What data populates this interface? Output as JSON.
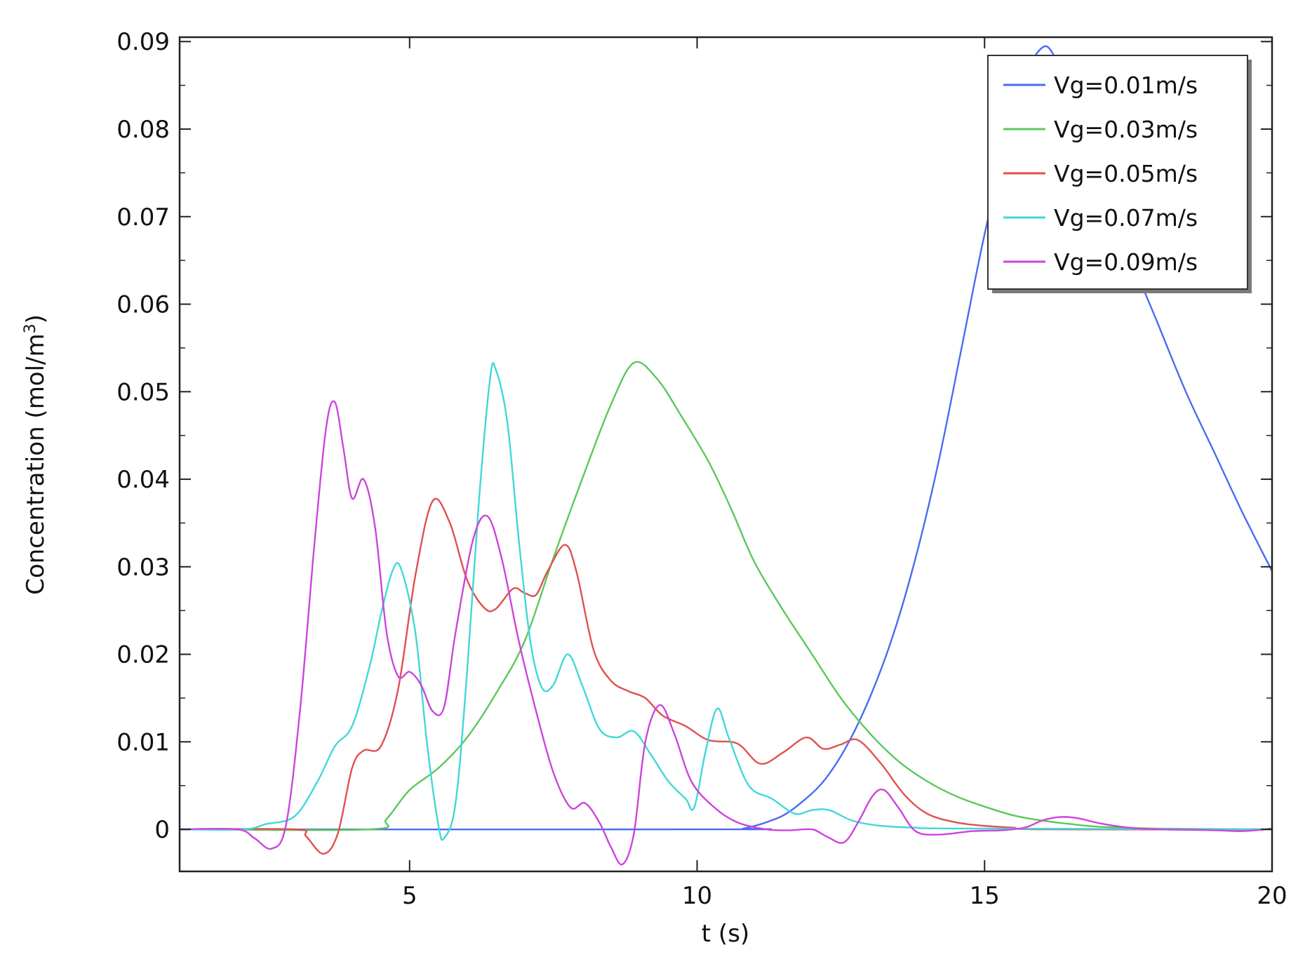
{
  "chart_data": {
    "type": "line",
    "xlabel": "t (s)",
    "ylabel": "Concentration (mol/m",
    "ylabel_superscript": "3",
    "ylabel_suffix": ")",
    "xlim": [
      1,
      20
    ],
    "ylim": [
      -0.0048,
      0.0905
    ],
    "x_ticks": [
      5,
      10,
      15,
      20
    ],
    "x_tick_labels": [
      "5",
      "10",
      "15",
      "20"
    ],
    "y_ticks": [
      0,
      0.01,
      0.02,
      0.03,
      0.04,
      0.05,
      0.06,
      0.07,
      0.08,
      0.09
    ],
    "y_tick_labels": [
      "0",
      "0.01",
      "0.02",
      "0.03",
      "0.04",
      "0.05",
      "0.06",
      "0.07",
      "0.08",
      "0.09"
    ],
    "grid": false,
    "legend_position": "top-right",
    "series": [
      {
        "name": "Vg=0.01m/s",
        "color": "#4a6cf0",
        "points": [
          [
            1,
            0
          ],
          [
            10.5,
            0
          ],
          [
            10.8,
            0.0001
          ],
          [
            11.0,
            0.0004
          ],
          [
            11.2,
            0.0008
          ],
          [
            11.5,
            0.0016
          ],
          [
            11.8,
            0.003
          ],
          [
            12.2,
            0.0055
          ],
          [
            12.6,
            0.0095
          ],
          [
            13.0,
            0.015
          ],
          [
            13.4,
            0.022
          ],
          [
            13.8,
            0.031
          ],
          [
            14.2,
            0.042
          ],
          [
            14.6,
            0.055
          ],
          [
            15.0,
            0.068
          ],
          [
            15.4,
            0.079
          ],
          [
            15.7,
            0.086
          ],
          [
            16.0,
            0.0893
          ],
          [
            16.2,
            0.0885
          ],
          [
            16.5,
            0.084
          ],
          [
            17.0,
            0.075
          ],
          [
            17.5,
            0.066
          ],
          [
            18.0,
            0.058
          ],
          [
            18.5,
            0.05
          ],
          [
            19.0,
            0.043
          ],
          [
            19.5,
            0.036
          ],
          [
            20.0,
            0.0295
          ]
        ]
      },
      {
        "name": "Vg=0.03m/s",
        "color": "#5cc85c",
        "points": [
          [
            1,
            0
          ],
          [
            4.3,
            0
          ],
          [
            4.6,
            0.0012
          ],
          [
            5.0,
            0.0045
          ],
          [
            5.5,
            0.007
          ],
          [
            6.0,
            0.0105
          ],
          [
            6.5,
            0.0155
          ],
          [
            7.0,
            0.0215
          ],
          [
            7.5,
            0.031
          ],
          [
            8.0,
            0.04
          ],
          [
            8.5,
            0.0485
          ],
          [
            8.9,
            0.0533
          ],
          [
            9.3,
            0.0515
          ],
          [
            9.7,
            0.0475
          ],
          [
            10.2,
            0.042
          ],
          [
            10.6,
            0.0365
          ],
          [
            11.0,
            0.0305
          ],
          [
            11.5,
            0.025
          ],
          [
            12.0,
            0.02
          ],
          [
            12.5,
            0.015
          ],
          [
            13.0,
            0.011
          ],
          [
            13.5,
            0.0078
          ],
          [
            14.0,
            0.0055
          ],
          [
            14.5,
            0.0038
          ],
          [
            15.0,
            0.0026
          ],
          [
            15.5,
            0.0016
          ],
          [
            16.0,
            0.001
          ],
          [
            16.5,
            0.0006
          ],
          [
            17.0,
            0.0003
          ],
          [
            18.0,
            0.0001
          ],
          [
            20.0,
            0
          ]
        ]
      },
      {
        "name": "Vg=0.05m/s",
        "color": "#e05050",
        "points": [
          [
            1,
            0
          ],
          [
            3.0,
            0
          ],
          [
            3.2,
            -0.0008
          ],
          [
            3.5,
            -0.0028
          ],
          [
            3.75,
            -0.0005
          ],
          [
            4.0,
            0.007
          ],
          [
            4.2,
            0.009
          ],
          [
            4.5,
            0.0095
          ],
          [
            4.8,
            0.016
          ],
          [
            5.1,
            0.029
          ],
          [
            5.4,
            0.0375
          ],
          [
            5.7,
            0.035
          ],
          [
            6.0,
            0.0285
          ],
          [
            6.3,
            0.0253
          ],
          [
            6.5,
            0.0252
          ],
          [
            6.8,
            0.0275
          ],
          [
            7.0,
            0.027
          ],
          [
            7.2,
            0.0268
          ],
          [
            7.4,
            0.0295
          ],
          [
            7.7,
            0.0325
          ],
          [
            7.9,
            0.0295
          ],
          [
            8.2,
            0.0205
          ],
          [
            8.5,
            0.017
          ],
          [
            8.8,
            0.0158
          ],
          [
            9.1,
            0.015
          ],
          [
            9.4,
            0.013
          ],
          [
            9.8,
            0.0118
          ],
          [
            10.2,
            0.0102
          ],
          [
            10.7,
            0.0098
          ],
          [
            11.1,
            0.0075
          ],
          [
            11.5,
            0.0088
          ],
          [
            11.9,
            0.0105
          ],
          [
            12.2,
            0.0092
          ],
          [
            12.5,
            0.0097
          ],
          [
            12.8,
            0.0102
          ],
          [
            13.2,
            0.0075
          ],
          [
            13.6,
            0.004
          ],
          [
            14.0,
            0.0018
          ],
          [
            14.5,
            0.0008
          ],
          [
            15.0,
            0.0004
          ],
          [
            15.5,
            0.0002
          ],
          [
            16.0,
            0
          ],
          [
            20.0,
            0
          ]
        ]
      },
      {
        "name": "Vg=0.07m/s",
        "color": "#40d8d8",
        "points": [
          [
            1,
            0
          ],
          [
            2.1,
            0
          ],
          [
            2.5,
            0.0006
          ],
          [
            3.0,
            0.0015
          ],
          [
            3.4,
            0.0055
          ],
          [
            3.7,
            0.0095
          ],
          [
            4.0,
            0.0118
          ],
          [
            4.3,
            0.0185
          ],
          [
            4.5,
            0.0245
          ],
          [
            4.7,
            0.0295
          ],
          [
            4.85,
            0.0298
          ],
          [
            5.1,
            0.0225
          ],
          [
            5.3,
            0.01
          ],
          [
            5.5,
            0.0005
          ],
          [
            5.6,
            -0.001
          ],
          [
            5.8,
            0.003
          ],
          [
            6.0,
            0.018
          ],
          [
            6.2,
            0.037
          ],
          [
            6.4,
            0.0515
          ],
          [
            6.5,
            0.0525
          ],
          [
            6.7,
            0.0465
          ],
          [
            6.9,
            0.033
          ],
          [
            7.1,
            0.0215
          ],
          [
            7.3,
            0.0162
          ],
          [
            7.5,
            0.0165
          ],
          [
            7.75,
            0.02
          ],
          [
            8.0,
            0.0165
          ],
          [
            8.3,
            0.0115
          ],
          [
            8.6,
            0.0105
          ],
          [
            8.9,
            0.0112
          ],
          [
            9.2,
            0.0085
          ],
          [
            9.5,
            0.0055
          ],
          [
            9.8,
            0.0035
          ],
          [
            9.95,
            0.0025
          ],
          [
            10.15,
            0.009
          ],
          [
            10.35,
            0.0138
          ],
          [
            10.55,
            0.0105
          ],
          [
            10.9,
            0.005
          ],
          [
            11.3,
            0.0035
          ],
          [
            11.7,
            0.0018
          ],
          [
            12.0,
            0.0022
          ],
          [
            12.3,
            0.0022
          ],
          [
            12.7,
            0.001
          ],
          [
            13.2,
            0.0004
          ],
          [
            13.8,
            0.0002
          ],
          [
            14.5,
            0.0001
          ],
          [
            20.0,
            0
          ]
        ]
      },
      {
        "name": "Vg=0.09m/s",
        "color": "#cc44dd",
        "points": [
          [
            1,
            0
          ],
          [
            2.0,
            0
          ],
          [
            2.3,
            -0.001
          ],
          [
            2.6,
            -0.0022
          ],
          [
            2.85,
            0.0005
          ],
          [
            3.1,
            0.014
          ],
          [
            3.35,
            0.033
          ],
          [
            3.55,
            0.046
          ],
          [
            3.7,
            0.0488
          ],
          [
            3.85,
            0.0435
          ],
          [
            4.0,
            0.0378
          ],
          [
            4.2,
            0.04
          ],
          [
            4.4,
            0.0345
          ],
          [
            4.6,
            0.0225
          ],
          [
            4.8,
            0.0175
          ],
          [
            5.0,
            0.018
          ],
          [
            5.2,
            0.0165
          ],
          [
            5.4,
            0.0135
          ],
          [
            5.6,
            0.014
          ],
          [
            5.8,
            0.0225
          ],
          [
            6.1,
            0.033
          ],
          [
            6.35,
            0.0358
          ],
          [
            6.6,
            0.031
          ],
          [
            6.9,
            0.0215
          ],
          [
            7.2,
            0.0135
          ],
          [
            7.5,
            0.0065
          ],
          [
            7.8,
            0.0025
          ],
          [
            8.05,
            0.003
          ],
          [
            8.3,
            0.0008
          ],
          [
            8.5,
            -0.002
          ],
          [
            8.7,
            -0.004
          ],
          [
            8.9,
            -0.0005
          ],
          [
            9.1,
            0.01
          ],
          [
            9.35,
            0.0142
          ],
          [
            9.6,
            0.011
          ],
          [
            9.9,
            0.0055
          ],
          [
            10.3,
            0.0025
          ],
          [
            10.7,
            0.0008
          ],
          [
            11.2,
            0
          ],
          [
            11.6,
            -0.0001
          ],
          [
            12.0,
            0
          ],
          [
            12.25,
            -0.0008
          ],
          [
            12.55,
            -0.0015
          ],
          [
            12.8,
            0.0008
          ],
          [
            13.05,
            0.0038
          ],
          [
            13.25,
            0.0045
          ],
          [
            13.5,
            0.0025
          ],
          [
            13.8,
            -0.0002
          ],
          [
            14.2,
            -0.0006
          ],
          [
            14.8,
            -0.0002
          ],
          [
            15.3,
            -0.0001
          ],
          [
            15.7,
            0.0002
          ],
          [
            16.0,
            0.001
          ],
          [
            16.3,
            0.0014
          ],
          [
            16.6,
            0.0013
          ],
          [
            17.0,
            0.0007
          ],
          [
            17.5,
            0.0002
          ],
          [
            18.0,
            0
          ],
          [
            19.0,
            -0.0001
          ],
          [
            19.5,
            -0.0002
          ],
          [
            20.0,
            0.0001
          ]
        ]
      }
    ]
  }
}
